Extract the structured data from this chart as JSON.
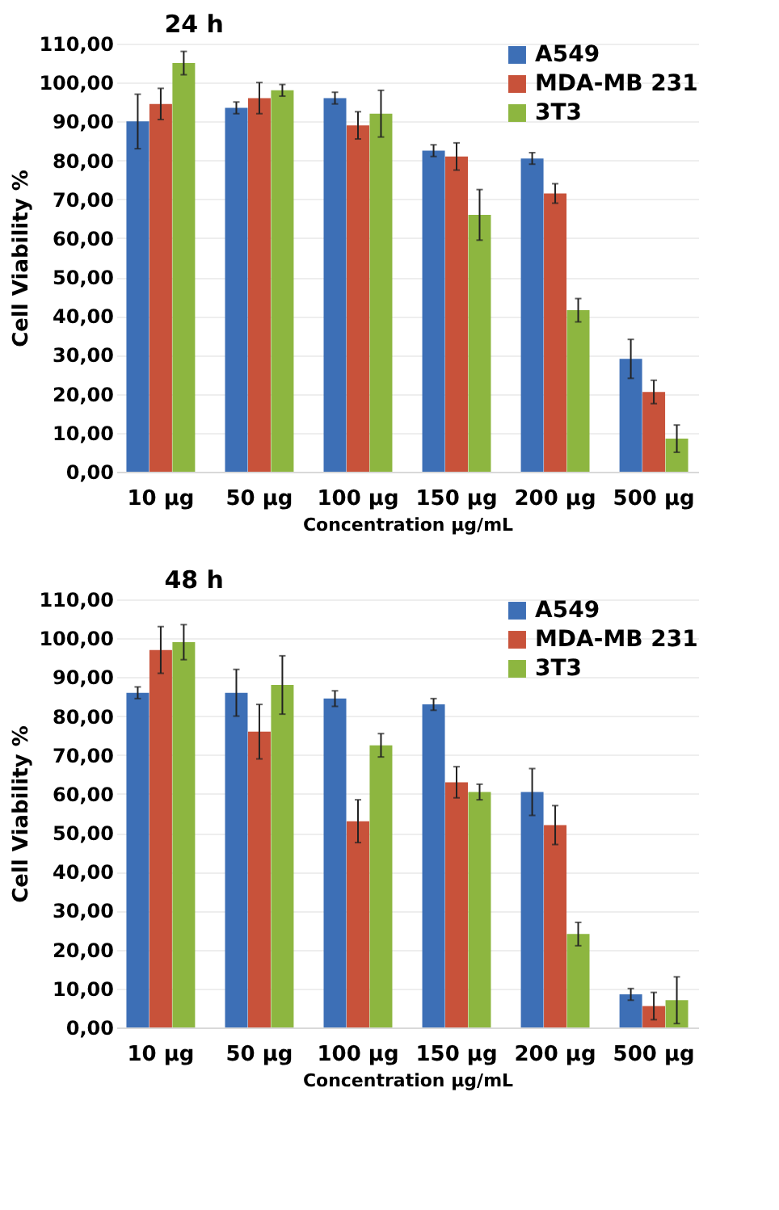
{
  "chart_data": [
    {
      "type": "bar",
      "title": "24 h",
      "xlabel": "Concentration µg/mL",
      "ylabel": "Cell Viability  %",
      "categories": [
        "10 µg",
        "50 µg",
        "100 µg",
        "150 µg",
        "200 µg",
        "500 µg"
      ],
      "series": [
        {
          "name": "A549",
          "color": "#3d6fb6",
          "values": [
            90,
            93.5,
            96,
            82.5,
            80.5,
            29
          ],
          "errors": [
            7,
            1.5,
            1.5,
            1.5,
            1.5,
            5
          ]
        },
        {
          "name": "MDA-MB 231",
          "color": "#c8523a",
          "values": [
            94.5,
            96,
            89,
            81,
            71.5,
            20.5
          ],
          "errors": [
            4,
            4,
            3.5,
            3.5,
            2.5,
            3
          ]
        },
        {
          "name": "3T3",
          "color": "#8db640",
          "values": [
            105,
            98,
            92,
            66,
            41.5,
            8.5
          ],
          "errors": [
            3,
            1.5,
            6,
            6.5,
            3,
            3.5
          ]
        }
      ],
      "ylim": [
        0,
        110
      ],
      "yticks": [
        {
          "value": 0,
          "label": "0,00"
        },
        {
          "value": 10,
          "label": "10,00"
        },
        {
          "value": 20,
          "label": "20,00"
        },
        {
          "value": 30,
          "label": "30,00"
        },
        {
          "value": 40,
          "label": "40,00"
        },
        {
          "value": 50,
          "label": "50,00"
        },
        {
          "value": 60,
          "label": "60,00"
        },
        {
          "value": 70,
          "label": "70,00"
        },
        {
          "value": 80,
          "label": "80,00"
        },
        {
          "value": 90,
          "label": "90,00"
        },
        {
          "value": 100,
          "label": "100,00"
        },
        {
          "value": 110,
          "label": "110,00"
        }
      ],
      "grid": "y",
      "legend": "top right"
    },
    {
      "type": "bar",
      "title": "48 h",
      "xlabel": "Concentration µg/mL",
      "ylabel": "Cell Viability  %",
      "categories": [
        "10 µg",
        "50 µg",
        "100 µg",
        "150 µg",
        "200 µg",
        "500 µg"
      ],
      "series": [
        {
          "name": "A549",
          "color": "#3d6fb6",
          "values": [
            86,
            86,
            84.5,
            83,
            60.5,
            8.5
          ],
          "errors": [
            1.5,
            6,
            2,
            1.5,
            6,
            1.5
          ]
        },
        {
          "name": "MDA-MB 231",
          "color": "#c8523a",
          "values": [
            97,
            76,
            53,
            63,
            52,
            5.5
          ],
          "errors": [
            6,
            7,
            5.5,
            4,
            5,
            3.5
          ]
        },
        {
          "name": "3T3",
          "color": "#8db640",
          "values": [
            99,
            88,
            72.5,
            60.5,
            24,
            7
          ],
          "errors": [
            4.5,
            7.5,
            3,
            2,
            3,
            6
          ]
        }
      ],
      "ylim": [
        0,
        110
      ],
      "yticks": [
        {
          "value": 0,
          "label": "0,00"
        },
        {
          "value": 10,
          "label": "10,00"
        },
        {
          "value": 20,
          "label": "20,00"
        },
        {
          "value": 30,
          "label": "30,00"
        },
        {
          "value": 40,
          "label": "40,00"
        },
        {
          "value": 50,
          "label": "50,00"
        },
        {
          "value": 60,
          "label": "60,00"
        },
        {
          "value": 70,
          "label": "70,00"
        },
        {
          "value": 80,
          "label": "80,00"
        },
        {
          "value": 90,
          "label": "90,00"
        },
        {
          "value": 100,
          "label": "100,00"
        },
        {
          "value": 110,
          "label": "110,00"
        }
      ],
      "grid": "y",
      "legend": "top right"
    }
  ]
}
